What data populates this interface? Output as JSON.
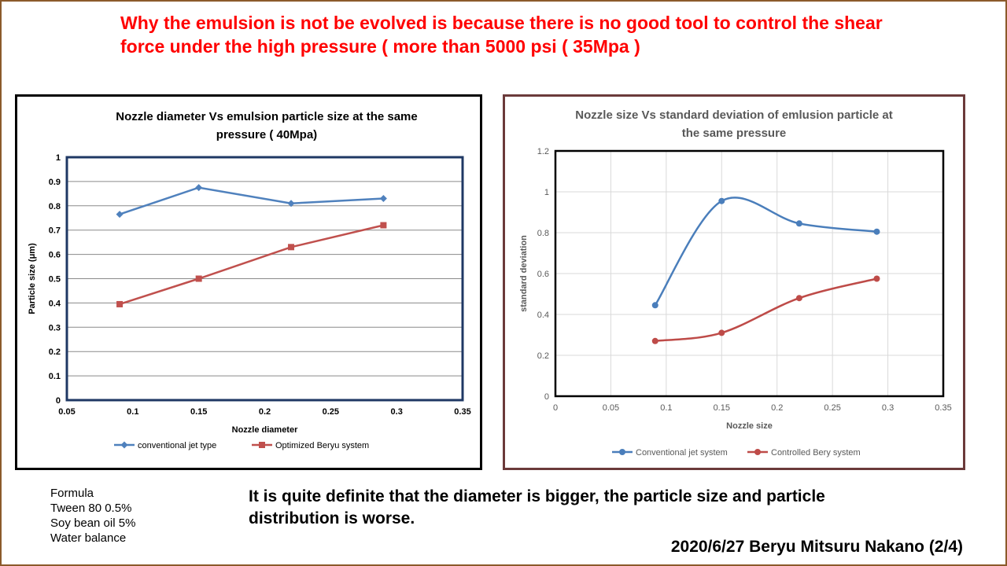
{
  "headline": "Why the emulsion is not be evolved is because there is no good tool to control the shear force under the high pressure ( more than 5000 psi ( 35Mpa )",
  "formula": {
    "title": "Formula",
    "lines": [
      "Tween 80  0.5%",
      "Soy bean oil 5%",
      "Water  balance"
    ]
  },
  "conclusion": "It is quite definite that the diameter is bigger, the particle size and particle distribution is worse.",
  "footer": "2020/6/27 Beryu Mitsuru Nakano (2/4)",
  "chart_data": [
    {
      "type": "line",
      "title": "Nozzle diameter Vs emulsion particle size at the same pressure ( 40Mpa)",
      "xlabel": "Nozzle diameter",
      "ylabel": "Particle size (μm)",
      "xlim": [
        0.05,
        0.35
      ],
      "ylim": [
        0,
        1
      ],
      "xticks": [
        "0.05",
        "0.1",
        "0.15",
        "0.2",
        "0.25",
        "0.3",
        "0.35"
      ],
      "yticks": [
        "0",
        "0.1",
        "0.2",
        "0.3",
        "0.4",
        "0.5",
        "0.6",
        "0.7",
        "0.8",
        "0.9",
        "1"
      ],
      "grid": true,
      "legend_position": "bottom",
      "series": [
        {
          "name": "conventional jet type",
          "color": "#4f81bd",
          "marker": "diamond",
          "smooth": false,
          "x": [
            0.09,
            0.15,
            0.22,
            0.29
          ],
          "y": [
            0.765,
            0.875,
            0.81,
            0.83
          ]
        },
        {
          "name": "Optimized Beryu system",
          "color": "#c0504d",
          "marker": "square",
          "smooth": false,
          "x": [
            0.09,
            0.15,
            0.22,
            0.29
          ],
          "y": [
            0.395,
            0.5,
            0.63,
            0.72
          ]
        }
      ]
    },
    {
      "type": "line",
      "title": "Nozzle size Vs standard deviation of emlusion particle at the same pressure",
      "xlabel": "Nozzle size",
      "ylabel": "standard deviation",
      "xlim": [
        0,
        0.35
      ],
      "ylim": [
        0,
        1.2
      ],
      "xticks": [
        "0",
        "0.05",
        "0.1",
        "0.15",
        "0.2",
        "0.25",
        "0.3",
        "0.35"
      ],
      "yticks": [
        "0",
        "0.2",
        "0.4",
        "0.6",
        "0.8",
        "1",
        "1.2"
      ],
      "grid": true,
      "legend_position": "bottom",
      "series": [
        {
          "name": "Conventional jet system",
          "color": "#4a7ebb",
          "marker": "circle",
          "smooth": true,
          "x": [
            0.09,
            0.15,
            0.22,
            0.29
          ],
          "y": [
            0.445,
            0.955,
            0.845,
            0.805
          ]
        },
        {
          "name": "Controlled Bery system",
          "color": "#be4b48",
          "marker": "circle",
          "smooth": true,
          "x": [
            0.09,
            0.15,
            0.22,
            0.29
          ],
          "y": [
            0.27,
            0.31,
            0.48,
            0.575
          ]
        }
      ]
    }
  ]
}
